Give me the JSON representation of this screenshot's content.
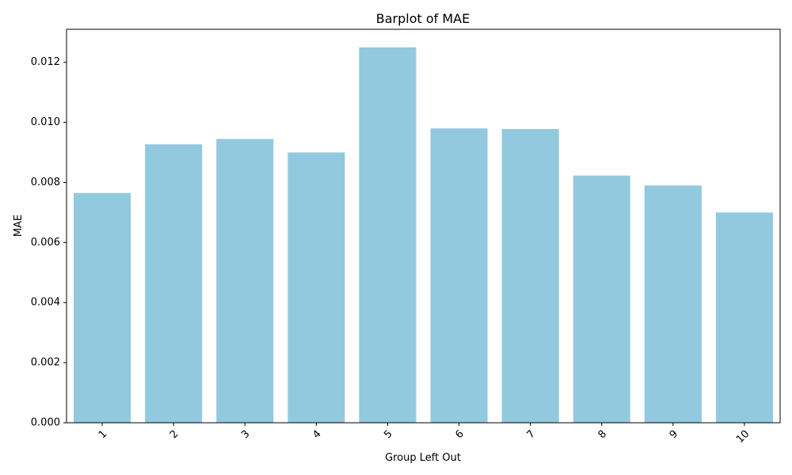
{
  "chart_data": {
    "type": "bar",
    "title": "Barplot of MAE",
    "xlabel": "Group Left Out",
    "ylabel": "MAE",
    "categories": [
      "1",
      "2",
      "3",
      "4",
      "5",
      "6",
      "7",
      "8",
      "9",
      "10"
    ],
    "values": [
      0.00765,
      0.00927,
      0.00945,
      0.009,
      0.0125,
      0.0098,
      0.00978,
      0.00823,
      0.0079,
      0.007
    ],
    "ylim": [
      0,
      0.0131
    ],
    "yticks": [
      "0.000",
      "0.002",
      "0.004",
      "0.006",
      "0.008",
      "0.010",
      "0.012"
    ],
    "ytick_values": [
      0,
      0.002,
      0.004,
      0.006,
      0.008,
      0.01,
      0.012
    ],
    "xtick_rotation": 45,
    "bar_color": "#92c9df",
    "grid": false,
    "legend": "none"
  }
}
